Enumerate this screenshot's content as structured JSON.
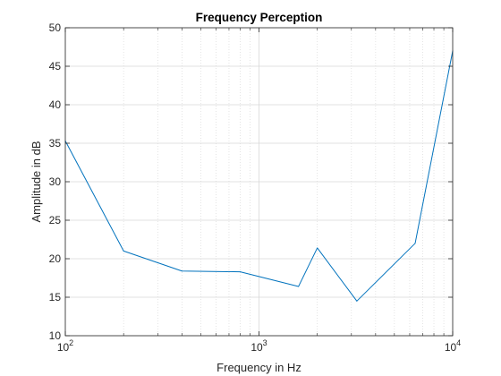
{
  "chart_data": {
    "type": "line",
    "title": "Frequency Perception",
    "xlabel": "Frequency in Hz",
    "ylabel": "Amplitude in dB",
    "xscale": "log",
    "xlim": [
      100,
      10000
    ],
    "ylim": [
      10,
      50
    ],
    "grid": "on (major and minor)",
    "legend": "none",
    "x_ticks": [
      {
        "value": 100,
        "mantissa": "10",
        "exponent": "2"
      },
      {
        "value": 1000,
        "mantissa": "10",
        "exponent": "3"
      },
      {
        "value": 10000,
        "mantissa": "10",
        "exponent": "4"
      }
    ],
    "y_ticks": [
      "10",
      "15",
      "20",
      "25",
      "30",
      "35",
      "40",
      "45",
      "50"
    ],
    "series": [
      {
        "color": "#0072BD",
        "x": [
          100,
          200,
          400,
          800,
          1600,
          2000,
          3200,
          6400,
          10000
        ],
        "y": [
          35.3,
          21.0,
          18.4,
          18.3,
          16.4,
          21.4,
          14.5,
          22.0,
          47.0
        ]
      }
    ],
    "colors": {
      "axis": "#262626",
      "grid": "#d9d9d9",
      "background": "#ffffff"
    }
  }
}
